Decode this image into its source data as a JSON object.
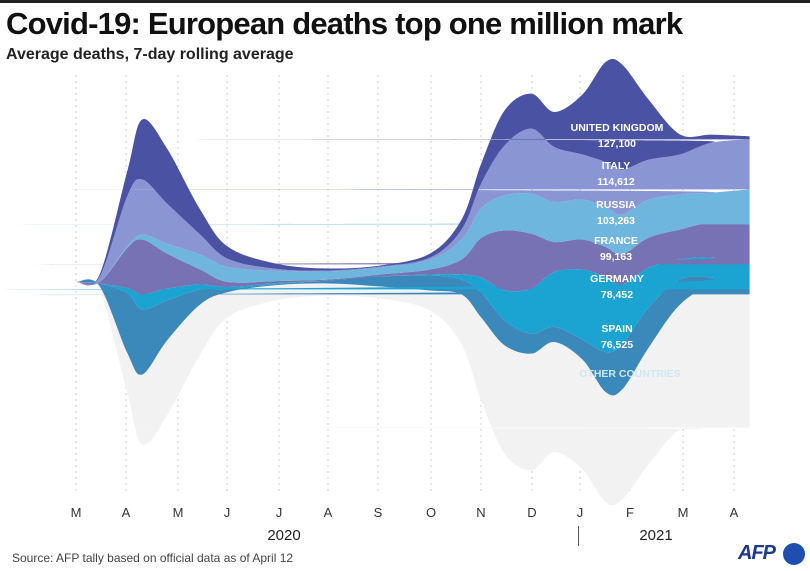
{
  "title": "Covid-19: European deaths top one million mark",
  "subtitle": "Average deaths, 7-day rolling average",
  "source": "Source: AFP tally based on official data as of April 12",
  "logo": "AFP",
  "chart_data": {
    "type": "area",
    "subtype": "streamgraph",
    "x": [
      "2020-03-01",
      "2020-03-15",
      "2020-04-01",
      "2020-04-10",
      "2020-04-25",
      "2020-05-15",
      "2020-06-01",
      "2020-07-01",
      "2020-08-01",
      "2020-09-01",
      "2020-10-01",
      "2020-10-20",
      "2020-11-01",
      "2020-11-15",
      "2020-12-01",
      "2020-12-15",
      "2021-01-01",
      "2021-01-15",
      "2021-01-25",
      "2021-02-10",
      "2021-03-01",
      "2021-03-20",
      "2021-04-12"
    ],
    "x_ticks": [
      "M",
      "A",
      "M",
      "J",
      "J",
      "A",
      "S",
      "O",
      "N",
      "D",
      "J",
      "F",
      "M",
      "A"
    ],
    "years": [
      "2020",
      "2021"
    ],
    "grid": "vertical-dotted",
    "series": [
      {
        "name": "UNITED KINGDOM",
        "total": "127,100",
        "color": "#4a53a3",
        "values": [
          0,
          24,
          300,
          720,
          660,
          300,
          144,
          60,
          24,
          12,
          48,
          120,
          240,
          420,
          420,
          420,
          720,
          1200,
          1260,
          720,
          240,
          96,
          36
        ]
      },
      {
        "name": "ITALY",
        "total": "114,612",
        "color": "#8a95d3",
        "values": [
          0,
          60,
          600,
          660,
          480,
          240,
          96,
          24,
          12,
          12,
          24,
          120,
          300,
          600,
          780,
          660,
          540,
          540,
          540,
          480,
          480,
          600,
          600
        ]
      },
      {
        "name": "RUSSIA",
        "total": "103,263",
        "color": "#6fb6de",
        "values": [
          0,
          0,
          24,
          60,
          120,
          180,
          180,
          120,
          96,
          84,
          120,
          240,
          360,
          420,
          480,
          480,
          480,
          480,
          480,
          456,
          420,
          360,
          420
        ]
      },
      {
        "name": "FRANCE",
        "total": "99,163",
        "color": "#7672b3",
        "values": [
          0,
          12,
          480,
          660,
          420,
          180,
          60,
          24,
          12,
          24,
          60,
          180,
          480,
          720,
          660,
          360,
          360,
          360,
          360,
          360,
          360,
          420,
          480
        ]
      },
      {
        "name": "GERMANY",
        "total": "78,452",
        "color": "#1ba4d2",
        "values": [
          0,
          0,
          60,
          180,
          144,
          60,
          24,
          12,
          0,
          0,
          12,
          60,
          180,
          360,
          540,
          660,
          840,
          900,
          720,
          480,
          240,
          240,
          300
        ]
      },
      {
        "name": "SPAIN",
        "total": "76,525",
        "color": "#3a89ba",
        "values": [
          0,
          24,
          720,
          780,
          480,
          180,
          36,
          12,
          36,
          120,
          180,
          180,
          300,
          300,
          240,
          180,
          240,
          480,
          540,
          480,
          300,
          120,
          60
        ]
      },
      {
        "name": "OTHER COUNTRIES",
        "color": "#f2f2f2",
        "values": [
          0,
          36,
          480,
          840,
          900,
          600,
          300,
          180,
          144,
          144,
          240,
          600,
          1000,
          1300,
          1400,
          1320,
          1320,
          1320,
          1320,
          1400,
          1500,
          1700,
          1600
        ]
      }
    ]
  }
}
